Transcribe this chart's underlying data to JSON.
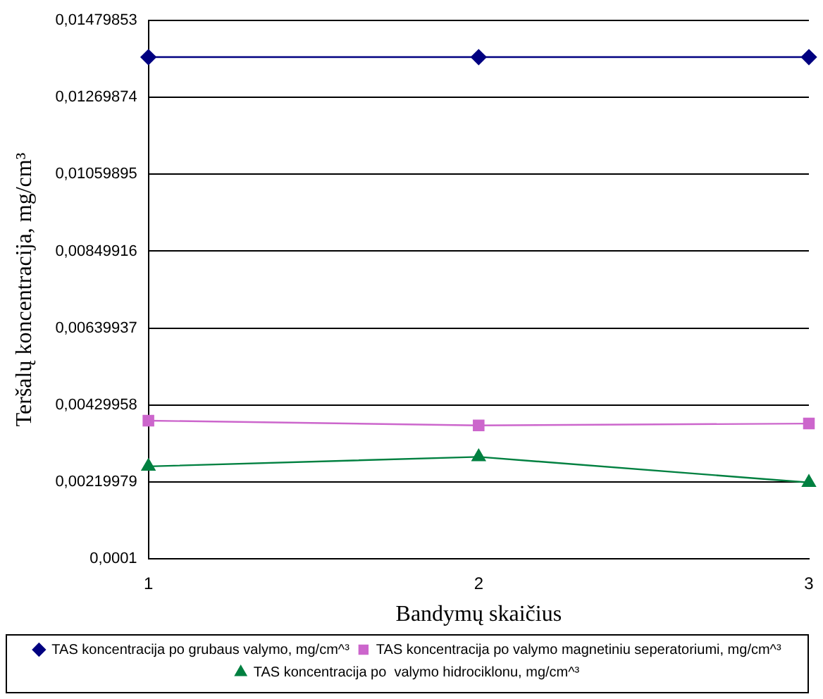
{
  "chart_data": {
    "type": "line",
    "xlabel": "Bandymų skaičius",
    "ylabel": "Teršalų koncentracija, mg/cm³",
    "categories": [
      "1",
      "2",
      "3"
    ],
    "series": [
      {
        "name": "TAS koncentracija po grubaus valymo, mg/cm^³",
        "color": "#000080",
        "marker": "diamond",
        "values": [
          0.0138,
          0.0138,
          0.0138
        ]
      },
      {
        "name": "TAS koncentracija po valymo magnetiniu seperatoriumi, mg/cm^³",
        "color": "#cc66cc",
        "marker": "square",
        "values": [
          0.00387,
          0.00374,
          0.00379
        ]
      },
      {
        "name": "TAS koncentracija po  valymo hidrociklonu, mg/cm^³",
        "color": "#008040",
        "marker": "triangle",
        "values": [
          0.00262,
          0.00288,
          0.00218
        ]
      }
    ],
    "ylim": [
      0.0001,
      0.01479853
    ],
    "yticks": [
      {
        "value": 0.0001,
        "label": "0,0001"
      },
      {
        "value": 0.00219979,
        "label": "0,00219979"
      },
      {
        "value": 0.00429958,
        "label": "0,00429958"
      },
      {
        "value": 0.00639937,
        "label": "0,00639937"
      },
      {
        "value": 0.00849916,
        "label": "0,00849916"
      },
      {
        "value": 0.01059895,
        "label": "0,01059895"
      },
      {
        "value": 0.01269874,
        "label": "0,01269874"
      },
      {
        "value": 0.01479853,
        "label": "0,01479853"
      }
    ],
    "grid": "y",
    "legend": "bottom",
    "line_style": "solid"
  }
}
